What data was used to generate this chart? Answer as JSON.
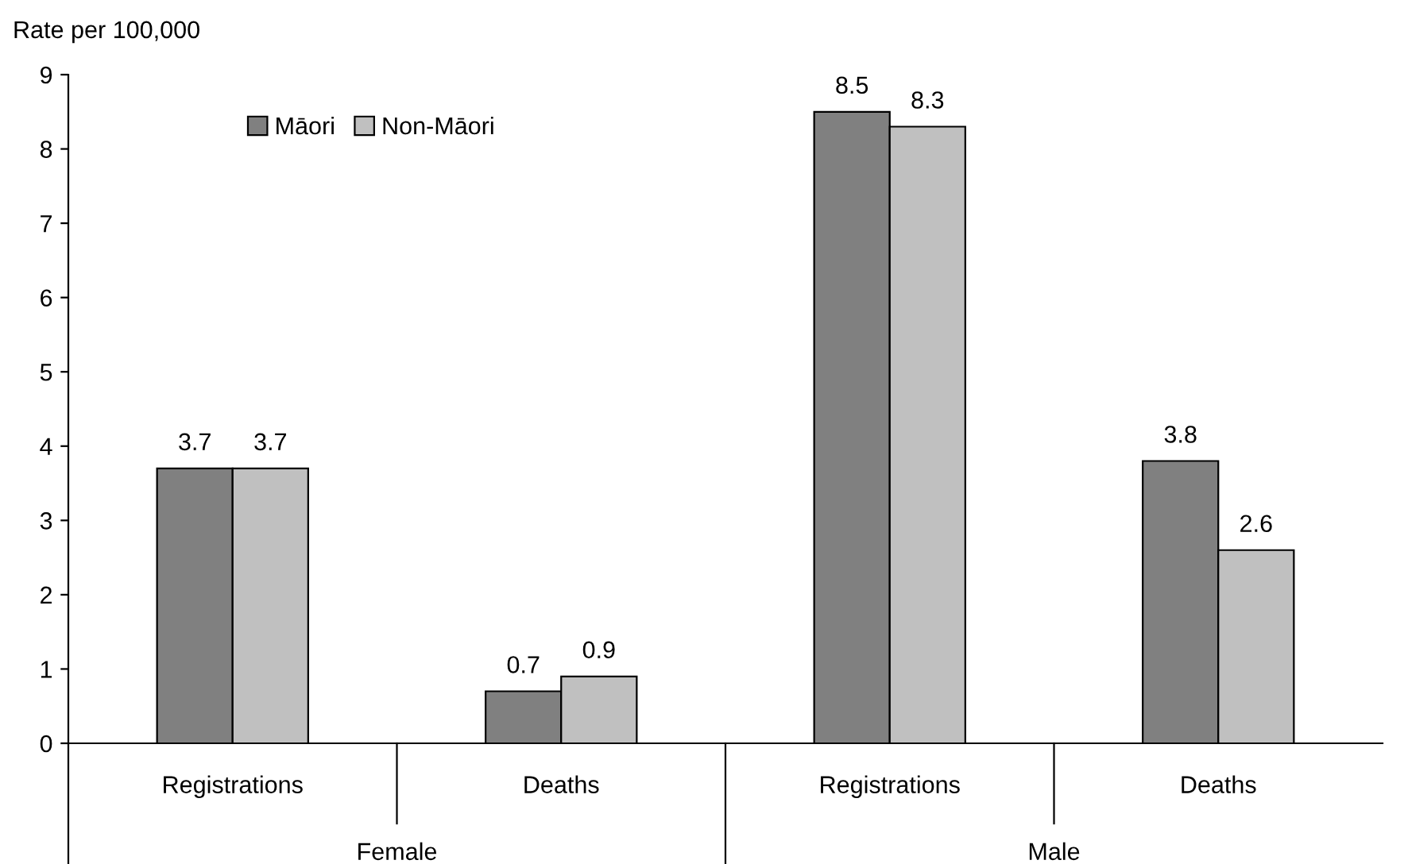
{
  "chart_data": {
    "type": "bar",
    "ylabel": "Rate per 100,000",
    "categories": [
      "Registrations",
      "Deaths",
      "Registrations",
      "Deaths"
    ],
    "series": [
      {
        "name": "Māori",
        "color": "#808080",
        "values": [
          3.7,
          0.7,
          8.5,
          3.8
        ]
      },
      {
        "name": "Non-Māori",
        "color": "#c0c0c0",
        "values": [
          3.7,
          0.9,
          8.3,
          2.6
        ]
      }
    ],
    "annotations": [
      "Female",
      "Male"
    ],
    "ylim": [
      0,
      9
    ],
    "yticks": [
      0,
      1,
      2,
      3,
      4,
      5,
      6,
      7,
      8,
      9
    ],
    "grid": false,
    "legend": "top left",
    "data_labels": true
  }
}
